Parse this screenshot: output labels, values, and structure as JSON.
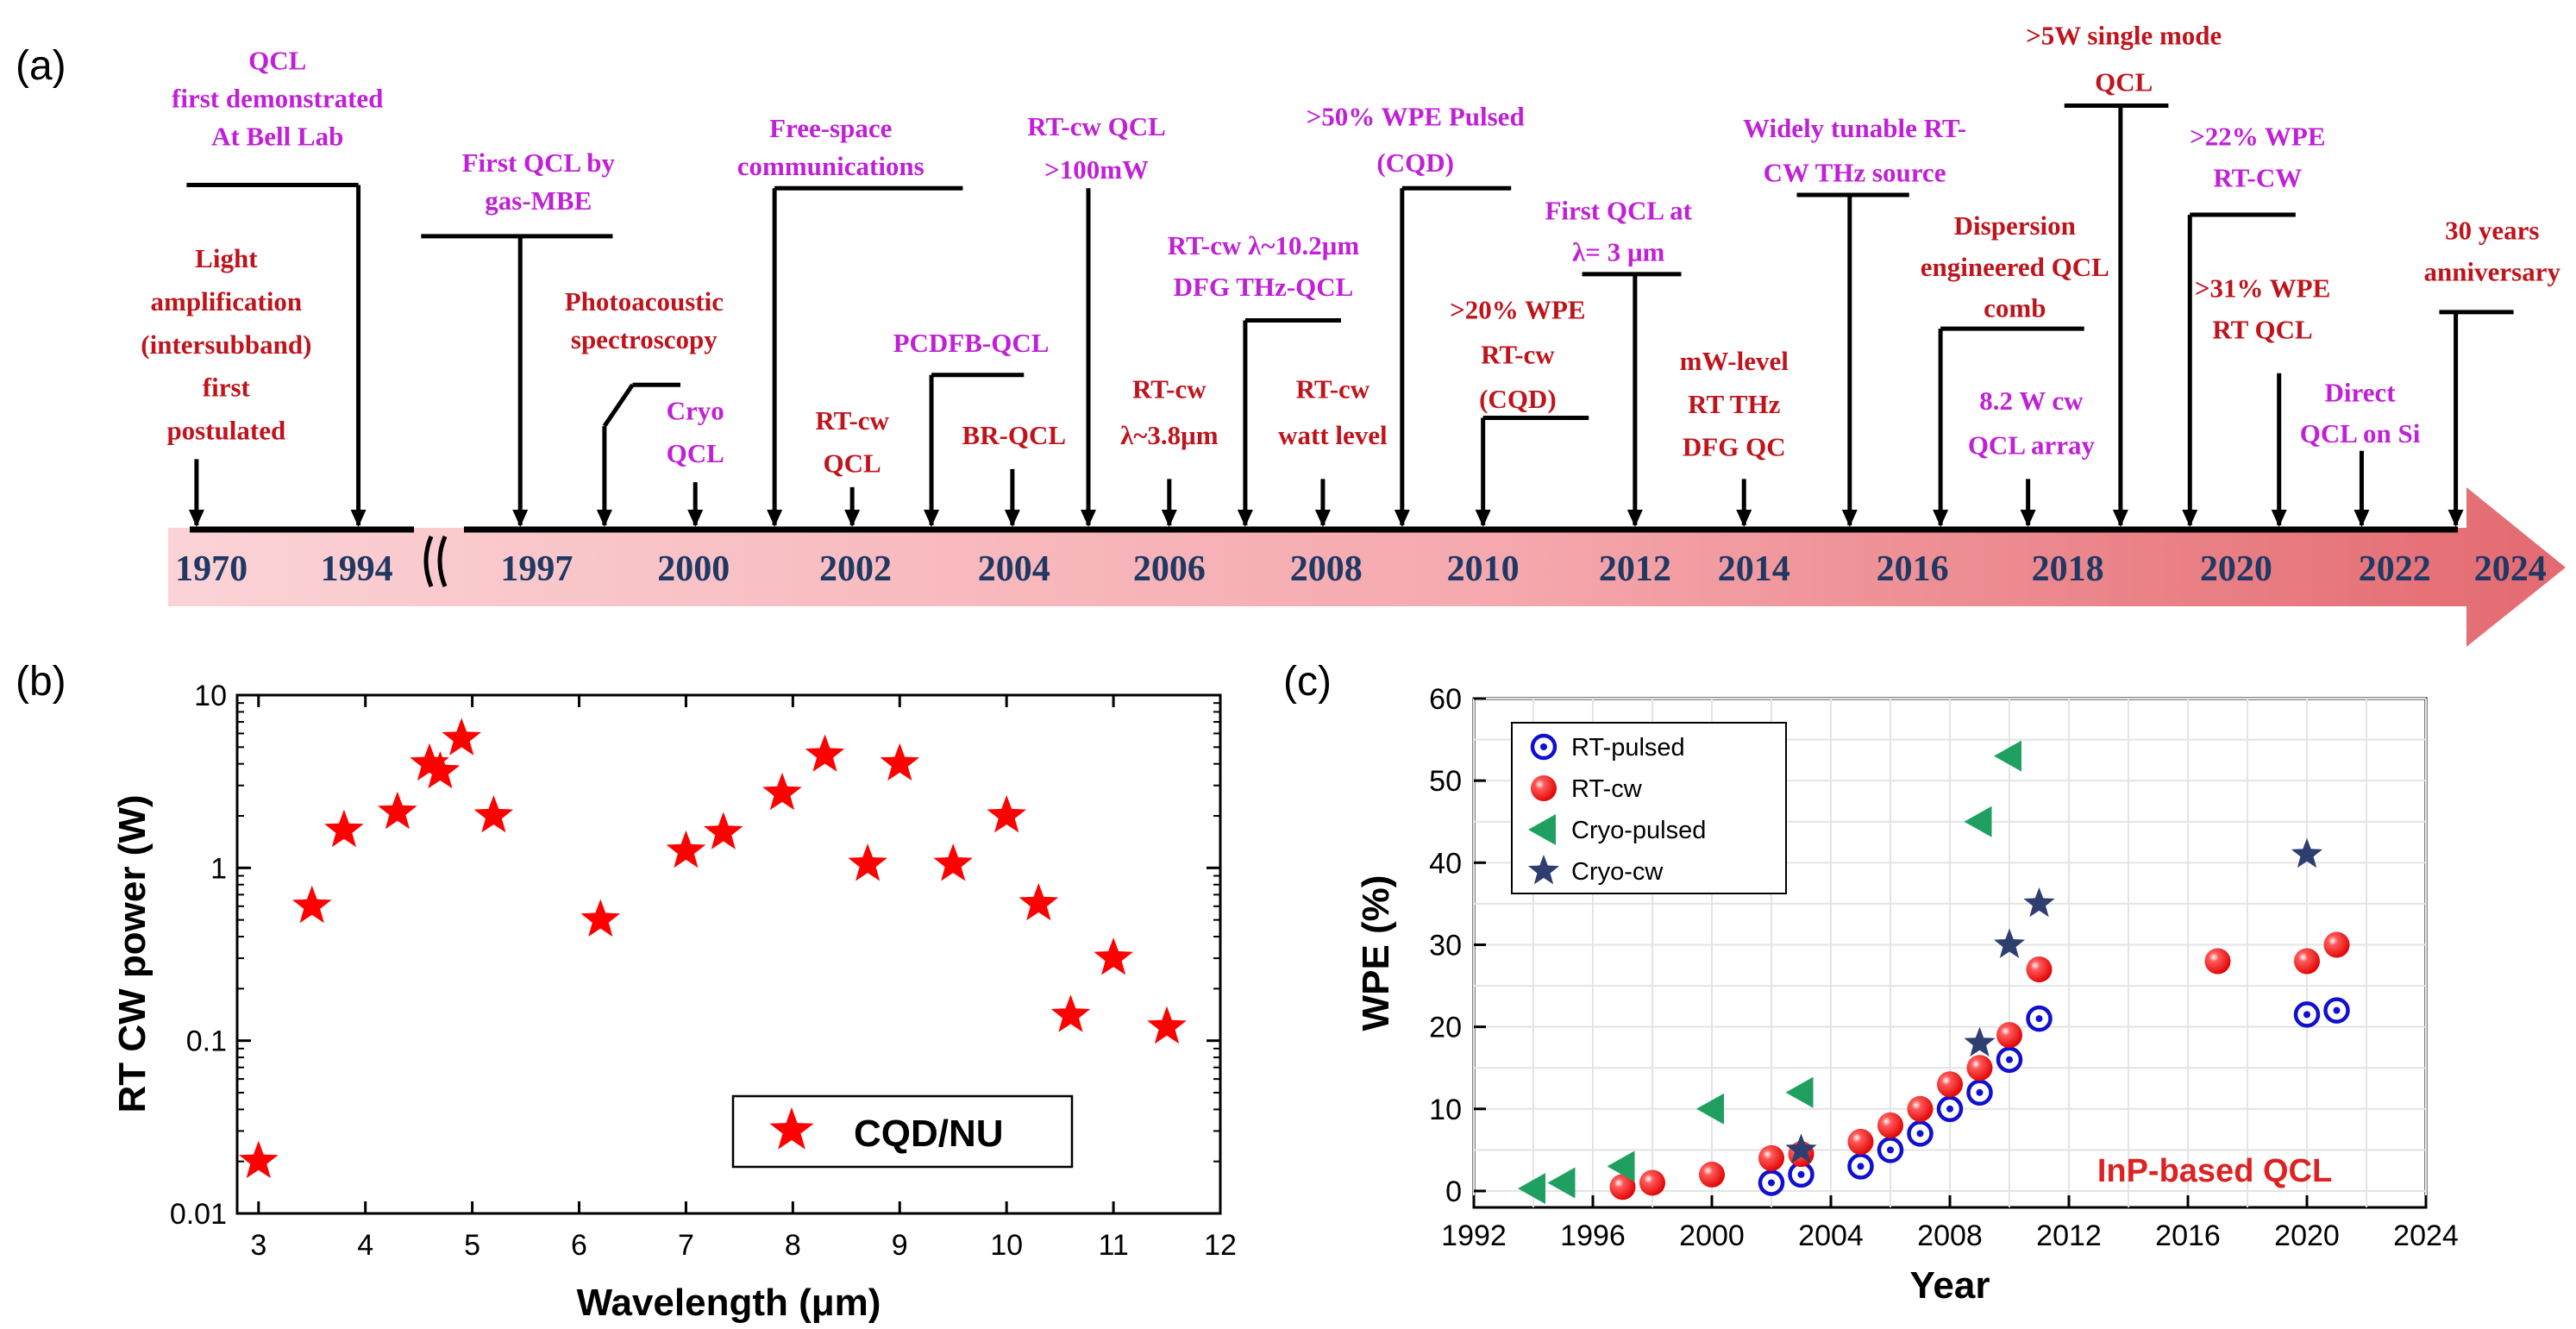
{
  "colors": {
    "red_text": "#c0141c",
    "magenta_text": "#c020d6",
    "year_text": "#1f3864",
    "marker_red": "#ff0000",
    "marker_blue": "#1010d0",
    "marker_green": "#20a060",
    "marker_navy": "#2e3e70",
    "inp_label": "#dd2222"
  },
  "panels": {
    "a": "(a)",
    "b": "(b)",
    "c": "(c)"
  },
  "chart_data": [
    {
      "id": "a",
      "type": "timeline",
      "years": [
        "1970",
        "1994",
        "1997",
        "2000",
        "2002",
        "2004",
        "2006",
        "2008",
        "2010",
        "2012",
        "2014",
        "2016",
        "2018",
        "2020",
        "2022",
        "2024"
      ],
      "events": [
        {
          "lines": [
            "Light",
            "amplification",
            "(intersubband)",
            "first",
            "postulated"
          ],
          "color": "red"
        },
        {
          "lines": [
            "QCL",
            "first demonstrated",
            "At Bell Lab"
          ],
          "color": "magenta"
        },
        {
          "lines": [
            "First QCL by",
            "gas-MBE"
          ],
          "color": "magenta"
        },
        {
          "lines": [
            "Photoacoustic",
            "spectroscopy"
          ],
          "color": "red"
        },
        {
          "lines": [
            "Cryo",
            "QCL"
          ],
          "color": "magenta"
        },
        {
          "lines": [
            "Free-space",
            "communications"
          ],
          "color": "magenta"
        },
        {
          "lines": [
            "RT-cw",
            "QCL"
          ],
          "color": "red"
        },
        {
          "lines": [
            "PCDFB-QCL"
          ],
          "color": "magenta"
        },
        {
          "lines": [
            "BR-QCL"
          ],
          "color": "red"
        },
        {
          "lines": [
            "RT-cw QCL",
            ">100mW"
          ],
          "color": "magenta"
        },
        {
          "lines": [
            "RT-cw",
            "λ~3.8μm"
          ],
          "color": "red"
        },
        {
          "lines": [
            "RT-cw λ~10.2μm",
            "DFG THz-QCL"
          ],
          "color": "magenta"
        },
        {
          "lines": [
            "RT-cw",
            "watt level"
          ],
          "color": "red"
        },
        {
          "lines": [
            ">50% WPE Pulsed",
            "(CQD)"
          ],
          "color": "magenta"
        },
        {
          "lines": [
            ">20% WPE",
            "RT-cw",
            "(CQD)"
          ],
          "color": "red"
        },
        {
          "lines": [
            "First QCL at",
            "λ= 3 μm"
          ],
          "color": "magenta"
        },
        {
          "lines": [
            "mW-level",
            "RT THz",
            "DFG QC"
          ],
          "color": "red"
        },
        {
          "lines": [
            "Widely tunable RT-",
            "CW THz source"
          ],
          "color": "magenta"
        },
        {
          "lines": [
            "Dispersion",
            "engineered QCL",
            "comb"
          ],
          "color": "red"
        },
        {
          "lines": [
            "8.2 W cw",
            "QCL array"
          ],
          "color": "magenta"
        },
        {
          "lines": [
            ">5W single mode",
            "QCL"
          ],
          "color": "red"
        },
        {
          "lines": [
            ">22% WPE",
            "RT-CW"
          ],
          "color": "magenta"
        },
        {
          "lines": [
            ">31% WPE",
            "RT QCL"
          ],
          "color": "red"
        },
        {
          "lines": [
            "Direct",
            "QCL on Si"
          ],
          "color": "magenta"
        },
        {
          "lines": [
            "30 years",
            "anniversary"
          ],
          "color": "red"
        }
      ]
    },
    {
      "id": "b",
      "type": "scatter",
      "xlabel": "Wavelength (μm)",
      "ylabel": "RT CW power (W)",
      "xlim": [
        2.8,
        12
      ],
      "ylim": [
        0.01,
        10
      ],
      "yscale": "log",
      "xticks": [
        "3",
        "4",
        "5",
        "6",
        "7",
        "8",
        "9",
        "10",
        "11",
        "12"
      ],
      "yticks": [
        "0.01",
        "0.1",
        "1",
        "10"
      ],
      "legend": "CQD/NU",
      "series": [
        {
          "name": "CQD/NU",
          "marker": "star",
          "x": [
            3.0,
            3.5,
            3.8,
            4.3,
            4.6,
            4.7,
            4.9,
            5.2,
            6.2,
            7.0,
            7.35,
            7.9,
            8.3,
            8.7,
            9.0,
            9.5,
            10.0,
            10.3,
            10.6,
            11.0,
            11.5
          ],
          "y": [
            0.02,
            0.6,
            1.65,
            2.1,
            4.0,
            3.6,
            5.6,
            2.0,
            0.5,
            1.25,
            1.6,
            2.7,
            4.5,
            1.05,
            4.0,
            1.05,
            2.0,
            0.62,
            0.14,
            0.3,
            0.12
          ]
        }
      ]
    },
    {
      "id": "c",
      "type": "scatter",
      "xlabel": "Year",
      "ylabel": "WPE (%)",
      "xlim": [
        1992,
        2024
      ],
      "ylim": [
        -2,
        60
      ],
      "xticks": [
        "1992",
        "1996",
        "2000",
        "2004",
        "2008",
        "2012",
        "2016",
        "2020",
        "2024"
      ],
      "yticks": [
        "0",
        "10",
        "20",
        "30",
        "40",
        "50",
        "60"
      ],
      "annotation": "InP-based QCL",
      "series": [
        {
          "name": "RT-pulsed",
          "marker": "circle-dot",
          "x": [
            2002,
            2003,
            2005,
            2006,
            2007,
            2008,
            2009,
            2010,
            2011,
            2020,
            2021
          ],
          "y": [
            1,
            2,
            3,
            5,
            7,
            10,
            12,
            16,
            21,
            21.5,
            22
          ]
        },
        {
          "name": "RT-cw",
          "marker": "ball",
          "x": [
            1997,
            1998,
            2000,
            2002,
            2003,
            2005,
            2006,
            2007,
            2008,
            2009,
            2010,
            2011,
            2017,
            2020,
            2021
          ],
          "y": [
            0.5,
            1,
            2,
            4,
            4.5,
            6,
            8,
            10,
            13,
            15,
            19,
            27,
            28,
            28,
            30
          ]
        },
        {
          "name": "Cryo-pulsed",
          "marker": "triangle-left",
          "x": [
            1994,
            1995,
            1997,
            2000,
            2003,
            2009,
            2010
          ],
          "y": [
            0.3,
            1,
            3,
            10,
            12,
            45,
            53
          ]
        },
        {
          "name": "Cryo-cw",
          "marker": "star",
          "x": [
            2003,
            2009,
            2010,
            2011,
            2020
          ],
          "y": [
            5,
            18,
            30,
            35,
            41
          ]
        }
      ]
    }
  ]
}
